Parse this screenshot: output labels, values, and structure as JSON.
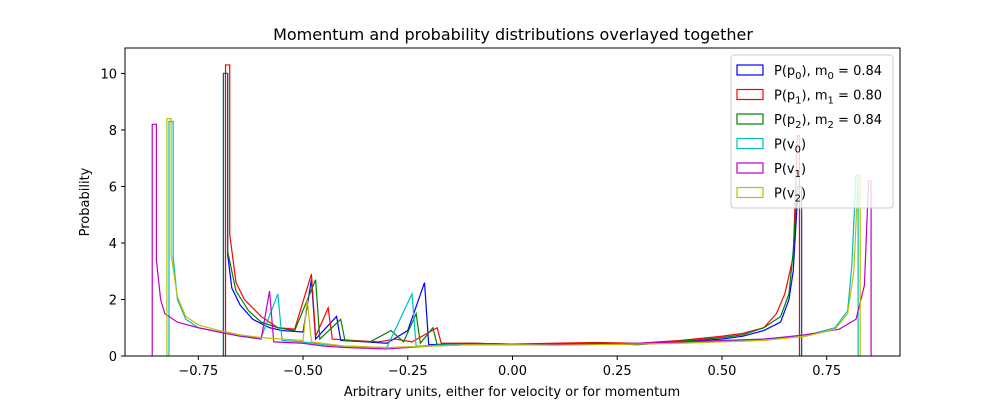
{
  "chart_data": {
    "type": "histogram-step",
    "title": "Momentum and probability distributions overlayed together",
    "xlabel": "Arbitrary units, either for velocity or for momentum",
    "ylabel": "Probability",
    "xlim": [
      -0.925,
      0.925
    ],
    "ylim": [
      0,
      10.9
    ],
    "xticks": [
      -0.75,
      -0.5,
      -0.25,
      0.0,
      0.25,
      0.5,
      0.75
    ],
    "xtick_labels": [
      "−0.75",
      "−0.50",
      "−0.25",
      "0.00",
      "0.25",
      "0.50",
      "0.75"
    ],
    "yticks": [
      0,
      2,
      4,
      6,
      8,
      10
    ],
    "ytick_labels": [
      "0",
      "2",
      "4",
      "6",
      "8",
      "10"
    ],
    "grid": false,
    "legend_position": "top-right",
    "series": [
      {
        "name": "P(p0), m0 = 0.84",
        "legend_main": "P(p",
        "legend_sub": "0",
        "legend_rest": "), m",
        "legend_sub2": "0",
        "legend_tail": " = 0.84",
        "color": "#0000ff",
        "points": [
          [
            -0.69,
            0
          ],
          [
            -0.69,
            10.0
          ],
          [
            -0.68,
            10.0
          ],
          [
            -0.68,
            3.6
          ],
          [
            -0.67,
            2.4
          ],
          [
            -0.65,
            1.8
          ],
          [
            -0.62,
            1.3
          ],
          [
            -0.58,
            1.0
          ],
          [
            -0.55,
            0.9
          ],
          [
            -0.5,
            0.85
          ],
          [
            -0.48,
            2.7
          ],
          [
            -0.47,
            0.6
          ],
          [
            -0.42,
            1.4
          ],
          [
            -0.41,
            0.55
          ],
          [
            -0.35,
            0.5
          ],
          [
            -0.3,
            0.45
          ],
          [
            -0.25,
            0.9
          ],
          [
            -0.21,
            2.6
          ],
          [
            -0.2,
            0.4
          ],
          [
            -0.1,
            0.45
          ],
          [
            0.0,
            0.42
          ],
          [
            0.1,
            0.4
          ],
          [
            0.2,
            0.45
          ],
          [
            0.3,
            0.4
          ],
          [
            0.4,
            0.5
          ],
          [
            0.5,
            0.6
          ],
          [
            0.55,
            0.7
          ],
          [
            0.6,
            0.9
          ],
          [
            0.64,
            1.2
          ],
          [
            0.66,
            2.0
          ],
          [
            0.67,
            3.0
          ],
          [
            0.68,
            5.5
          ],
          [
            0.69,
            5.5
          ],
          [
            0.69,
            0
          ]
        ]
      },
      {
        "name": "P(p1), m1 = 0.80",
        "legend_main": "P(p",
        "legend_sub": "1",
        "legend_rest": "), m",
        "legend_sub2": "1",
        "legend_tail": " = 0.80",
        "color": "#ff0000",
        "points": [
          [
            -0.685,
            0
          ],
          [
            -0.685,
            10.3
          ],
          [
            -0.675,
            10.3
          ],
          [
            -0.675,
            4.3
          ],
          [
            -0.66,
            2.6
          ],
          [
            -0.64,
            2.0
          ],
          [
            -0.6,
            1.4
          ],
          [
            -0.56,
            1.0
          ],
          [
            -0.52,
            0.95
          ],
          [
            -0.48,
            2.9
          ],
          [
            -0.47,
            0.7
          ],
          [
            -0.44,
            1.7
          ],
          [
            -0.43,
            0.6
          ],
          [
            -0.38,
            0.55
          ],
          [
            -0.32,
            0.5
          ],
          [
            -0.28,
            0.6
          ],
          [
            -0.24,
            0.5
          ],
          [
            -0.18,
            1.0
          ],
          [
            -0.17,
            0.45
          ],
          [
            -0.1,
            0.45
          ],
          [
            0.0,
            0.42
          ],
          [
            0.1,
            0.45
          ],
          [
            0.2,
            0.48
          ],
          [
            0.3,
            0.45
          ],
          [
            0.4,
            0.55
          ],
          [
            0.5,
            0.7
          ],
          [
            0.55,
            0.8
          ],
          [
            0.6,
            1.0
          ],
          [
            0.63,
            1.5
          ],
          [
            0.65,
            2.2
          ],
          [
            0.67,
            3.5
          ],
          [
            0.68,
            7.8
          ],
          [
            0.685,
            7.8
          ],
          [
            0.685,
            0
          ]
        ]
      },
      {
        "name": "P(p2), m2 = 0.84",
        "legend_main": "P(p",
        "legend_sub": "2",
        "legend_rest": "), m",
        "legend_sub2": "2",
        "legend_tail": " = 0.84",
        "color": "#008000",
        "points": [
          [
            -0.69,
            0
          ],
          [
            -0.69,
            10.0
          ],
          [
            -0.68,
            10.0
          ],
          [
            -0.68,
            3.7
          ],
          [
            -0.66,
            2.3
          ],
          [
            -0.63,
            1.6
          ],
          [
            -0.6,
            1.2
          ],
          [
            -0.56,
            1.0
          ],
          [
            -0.52,
            0.9
          ],
          [
            -0.47,
            2.7
          ],
          [
            -0.46,
            0.6
          ],
          [
            -0.41,
            1.3
          ],
          [
            -0.4,
            0.55
          ],
          [
            -0.34,
            0.5
          ],
          [
            -0.29,
            0.9
          ],
          [
            -0.26,
            0.5
          ],
          [
            -0.23,
            1.5
          ],
          [
            -0.22,
            0.45
          ],
          [
            -0.19,
            1.0
          ],
          [
            -0.18,
            0.4
          ],
          [
            -0.1,
            0.42
          ],
          [
            0.0,
            0.4
          ],
          [
            0.1,
            0.42
          ],
          [
            0.2,
            0.45
          ],
          [
            0.3,
            0.42
          ],
          [
            0.4,
            0.52
          ],
          [
            0.5,
            0.65
          ],
          [
            0.55,
            0.75
          ],
          [
            0.6,
            1.0
          ],
          [
            0.64,
            1.4
          ],
          [
            0.66,
            2.2
          ],
          [
            0.67,
            3.7
          ],
          [
            0.68,
            6.0
          ],
          [
            0.69,
            6.0
          ],
          [
            0.69,
            0
          ]
        ]
      },
      {
        "name": "P(v0)",
        "legend_main": "P(v",
        "legend_sub": "0",
        "legend_rest": ")",
        "legend_sub2": "",
        "legend_tail": "",
        "color": "#00bfbf",
        "points": [
          [
            -0.82,
            0
          ],
          [
            -0.82,
            8.3
          ],
          [
            -0.81,
            8.3
          ],
          [
            -0.81,
            3.5
          ],
          [
            -0.8,
            2.0
          ],
          [
            -0.78,
            1.3
          ],
          [
            -0.75,
            1.0
          ],
          [
            -0.7,
            0.85
          ],
          [
            -0.65,
            0.7
          ],
          [
            -0.6,
            0.65
          ],
          [
            -0.56,
            2.2
          ],
          [
            -0.55,
            0.55
          ],
          [
            -0.5,
            0.5
          ],
          [
            -0.45,
            0.4
          ],
          [
            -0.4,
            0.35
          ],
          [
            -0.3,
            0.3
          ],
          [
            -0.24,
            2.2
          ],
          [
            -0.23,
            0.35
          ],
          [
            -0.15,
            0.4
          ],
          [
            0.0,
            0.4
          ],
          [
            0.15,
            0.4
          ],
          [
            0.3,
            0.45
          ],
          [
            0.45,
            0.5
          ],
          [
            0.55,
            0.55
          ],
          [
            0.65,
            0.65
          ],
          [
            0.72,
            0.8
          ],
          [
            0.77,
            1.0
          ],
          [
            0.8,
            1.6
          ],
          [
            0.81,
            3.2
          ],
          [
            0.82,
            6.4
          ],
          [
            0.825,
            6.4
          ],
          [
            0.825,
            0
          ]
        ]
      },
      {
        "name": "P(v1)",
        "legend_main": "P(v",
        "legend_sub": "1",
        "legend_rest": ")",
        "legend_sub2": "",
        "legend_tail": "",
        "color": "#bf00bf",
        "points": [
          [
            -0.86,
            0
          ],
          [
            -0.86,
            8.2
          ],
          [
            -0.85,
            8.2
          ],
          [
            -0.85,
            3.4
          ],
          [
            -0.84,
            2.0
          ],
          [
            -0.83,
            1.5
          ],
          [
            -0.8,
            1.2
          ],
          [
            -0.75,
            1.0
          ],
          [
            -0.7,
            0.85
          ],
          [
            -0.65,
            0.7
          ],
          [
            -0.6,
            0.6
          ],
          [
            -0.58,
            2.3
          ],
          [
            -0.57,
            0.5
          ],
          [
            -0.5,
            0.45
          ],
          [
            -0.45,
            0.35
          ],
          [
            -0.4,
            0.3
          ],
          [
            -0.3,
            0.25
          ],
          [
            -0.2,
            0.35
          ],
          [
            -0.1,
            0.4
          ],
          [
            0.0,
            0.4
          ],
          [
            0.1,
            0.4
          ],
          [
            0.2,
            0.42
          ],
          [
            0.3,
            0.45
          ],
          [
            0.4,
            0.5
          ],
          [
            0.5,
            0.55
          ],
          [
            0.6,
            0.6
          ],
          [
            0.7,
            0.75
          ],
          [
            0.78,
            0.95
          ],
          [
            0.82,
            1.3
          ],
          [
            0.84,
            2.5
          ],
          [
            0.85,
            6.2
          ],
          [
            0.856,
            6.2
          ],
          [
            0.856,
            0
          ]
        ]
      },
      {
        "name": "P(v2)",
        "legend_main": "P(v",
        "legend_sub": "2",
        "legend_rest": ")",
        "legend_sub2": "",
        "legend_tail": "",
        "color": "#bfbf00",
        "points": [
          [
            -0.825,
            0
          ],
          [
            -0.825,
            8.4
          ],
          [
            -0.815,
            8.4
          ],
          [
            -0.815,
            3.6
          ],
          [
            -0.8,
            2.1
          ],
          [
            -0.78,
            1.4
          ],
          [
            -0.75,
            1.1
          ],
          [
            -0.7,
            0.9
          ],
          [
            -0.65,
            0.75
          ],
          [
            -0.6,
            0.65
          ],
          [
            -0.5,
            0.55
          ],
          [
            -0.49,
            2.0
          ],
          [
            -0.48,
            0.5
          ],
          [
            -0.4,
            0.35
          ],
          [
            -0.3,
            0.3
          ],
          [
            -0.2,
            0.35
          ],
          [
            -0.1,
            0.4
          ],
          [
            0.0,
            0.4
          ],
          [
            0.1,
            0.38
          ],
          [
            0.2,
            0.4
          ],
          [
            0.3,
            0.42
          ],
          [
            0.4,
            0.45
          ],
          [
            0.5,
            0.5
          ],
          [
            0.6,
            0.55
          ],
          [
            0.7,
            0.7
          ],
          [
            0.77,
            0.95
          ],
          [
            0.8,
            1.5
          ],
          [
            0.815,
            3.0
          ],
          [
            0.825,
            6.4
          ],
          [
            0.83,
            6.4
          ],
          [
            0.83,
            0
          ]
        ]
      }
    ]
  }
}
